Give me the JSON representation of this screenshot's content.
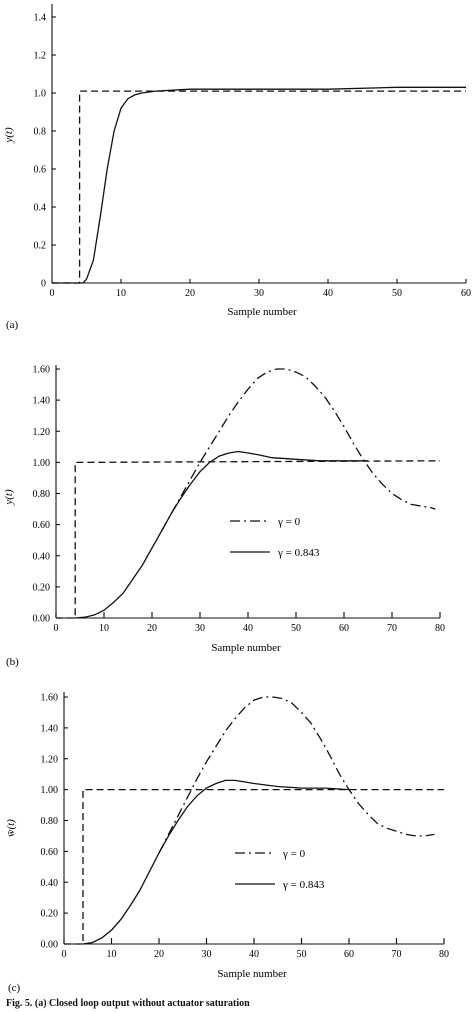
{
  "chart_data": [
    {
      "type": "line",
      "panel_label": "(a)",
      "xlabel": "Sample number",
      "ylabel": "y(t)",
      "xlim": [
        0,
        60
      ],
      "ylim": [
        0,
        1.5
      ],
      "xticks": [
        "0",
        "10",
        "20",
        "30",
        "40",
        "50",
        "60"
      ],
      "yticks": [
        "0",
        "0.2",
        "0.4",
        "0.6",
        "0.8",
        "1.0",
        "1.2",
        "1.4"
      ],
      "series": [
        {
          "style": "dashed",
          "x": [
            0,
            4,
            4,
            60
          ],
          "y": [
            0,
            0,
            1.01,
            1.01
          ]
        },
        {
          "style": "solid",
          "x": [
            0,
            4.5,
            5,
            6,
            7,
            8,
            9,
            10,
            11,
            12,
            13,
            15,
            20,
            30,
            40,
            50,
            60
          ],
          "y": [
            0,
            0,
            0.02,
            0.12,
            0.35,
            0.6,
            0.8,
            0.92,
            0.97,
            0.99,
            1.0,
            1.01,
            1.02,
            1.02,
            1.02,
            1.03,
            1.03
          ]
        }
      ]
    },
    {
      "type": "line",
      "panel_label": "(b)",
      "xlabel": "Sample number",
      "ylabel": "y(t)",
      "xlim": [
        0,
        80
      ],
      "ylim": [
        0,
        1.66
      ],
      "xticks": [
        "0",
        "10",
        "20",
        "30",
        "40",
        "50",
        "60",
        "70",
        "80"
      ],
      "yticks": [
        "0.00",
        "0.20",
        "0.40",
        "0.60",
        "0.80",
        "1.00",
        "1.20",
        "1.40",
        "1.60"
      ],
      "legend": [
        {
          "style": "dashdot",
          "label": "γ = 0"
        },
        {
          "style": "solid",
          "label": "γ = 0.843"
        }
      ],
      "series": [
        {
          "style": "dashed",
          "x": [
            0,
            4,
            4,
            80
          ],
          "y": [
            0,
            0,
            1.0,
            1.01
          ]
        },
        {
          "style": "solid",
          "name": "γ = 0.843",
          "x": [
            4,
            6,
            8,
            10,
            12,
            14,
            16,
            18,
            20,
            22,
            24,
            26,
            28,
            30,
            32,
            34,
            36,
            38,
            40,
            42,
            45,
            50,
            55,
            60,
            65
          ],
          "y": [
            0,
            0.005,
            0.02,
            0.05,
            0.1,
            0.16,
            0.25,
            0.34,
            0.45,
            0.56,
            0.67,
            0.77,
            0.86,
            0.94,
            1.0,
            1.04,
            1.06,
            1.07,
            1.06,
            1.05,
            1.03,
            1.02,
            1.01,
            1.01,
            1.01
          ]
        },
        {
          "style": "dashdot",
          "name": "γ = 0",
          "x": [
            22,
            24,
            26,
            28,
            30,
            32,
            34,
            36,
            38,
            40,
            42,
            44,
            46,
            48,
            50,
            52,
            54,
            56,
            58,
            60,
            62,
            64,
            66,
            68,
            70,
            72,
            74,
            76,
            78,
            79
          ],
          "y": [
            0.56,
            0.67,
            0.78,
            0.89,
            1.0,
            1.1,
            1.2,
            1.3,
            1.39,
            1.47,
            1.54,
            1.58,
            1.6,
            1.6,
            1.58,
            1.55,
            1.49,
            1.42,
            1.33,
            1.23,
            1.12,
            1.02,
            0.93,
            0.86,
            0.8,
            0.76,
            0.73,
            0.72,
            0.71,
            0.7
          ]
        }
      ]
    },
    {
      "type": "line",
      "panel_label": "(c)",
      "xlabel": "Sample number",
      "ylabel": "w̄(t)",
      "xlim": [
        0,
        80
      ],
      "ylim": [
        0,
        1.66
      ],
      "xticks": [
        "0",
        "10",
        "20",
        "30",
        "40",
        "50",
        "60",
        "70",
        "80"
      ],
      "yticks": [
        "0.00",
        "0.20",
        "0.40",
        "0.60",
        "0.80",
        "1.00",
        "1.20",
        "1.40",
        "1.60"
      ],
      "legend": [
        {
          "style": "dashdot",
          "label": "γ = 0"
        },
        {
          "style": "solid",
          "label": "γ = 0.843"
        }
      ],
      "series": [
        {
          "style": "dashed",
          "x": [
            0,
            4,
            4,
            80
          ],
          "y": [
            0,
            0,
            1.0,
            1.0
          ]
        },
        {
          "style": "solid",
          "name": "γ = 0.843",
          "x": [
            4,
            6,
            8,
            10,
            12,
            14,
            16,
            18,
            20,
            22,
            24,
            26,
            28,
            30,
            32,
            34,
            36,
            38,
            40,
            45,
            50,
            55,
            60
          ],
          "y": [
            0,
            0.01,
            0.04,
            0.09,
            0.16,
            0.25,
            0.35,
            0.47,
            0.59,
            0.7,
            0.8,
            0.89,
            0.96,
            1.01,
            1.04,
            1.06,
            1.06,
            1.05,
            1.04,
            1.02,
            1.01,
            1.01,
            1.0
          ]
        },
        {
          "style": "dashdot",
          "name": "γ = 0",
          "x": [
            20,
            22,
            24,
            26,
            28,
            30,
            32,
            34,
            36,
            38,
            40,
            42,
            44,
            46,
            48,
            50,
            52,
            54,
            56,
            58,
            60,
            62,
            64,
            66,
            68,
            70,
            72,
            74,
            76,
            78
          ],
          "y": [
            0.59,
            0.71,
            0.83,
            0.95,
            1.07,
            1.18,
            1.28,
            1.38,
            1.46,
            1.53,
            1.58,
            1.6,
            1.6,
            1.59,
            1.56,
            1.5,
            1.43,
            1.33,
            1.22,
            1.1,
            1.0,
            0.91,
            0.84,
            0.78,
            0.75,
            0.73,
            0.71,
            0.7,
            0.7,
            0.71
          ]
        }
      ]
    }
  ],
  "caption": "Fig. 5. (a) Closed loop output without actuator saturation"
}
